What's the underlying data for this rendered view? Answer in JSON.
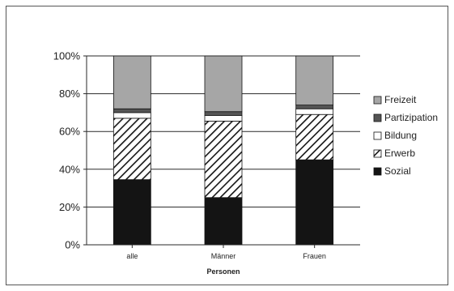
{
  "chart_data": {
    "type": "bar",
    "stacked": true,
    "percent": true,
    "xlabel": "Personen",
    "ylabel": "",
    "ylim": [
      0,
      100
    ],
    "yticks": [
      "0%",
      "20%",
      "40%",
      "60%",
      "80%",
      "100%"
    ],
    "categories": [
      "alle",
      "Männer",
      "Frauen"
    ],
    "series": [
      {
        "name": "Sozial",
        "values": [
          34.5,
          25.0,
          45.0
        ],
        "color": "#141414",
        "pattern": "solid"
      },
      {
        "name": "Erwerb",
        "values": [
          32.5,
          40.5,
          24.0
        ],
        "color": "#ffffff",
        "pattern": "diagonal-hatch"
      },
      {
        "name": "Bildung",
        "values": [
          3.0,
          3.0,
          3.0
        ],
        "color": "#ffffff",
        "pattern": "solid"
      },
      {
        "name": "Partizipation",
        "values": [
          2.0,
          2.0,
          2.0
        ],
        "color": "#555555",
        "pattern": "solid"
      },
      {
        "name": "Freizeit",
        "values": [
          28.0,
          29.5,
          26.0
        ],
        "color": "#a6a6a6",
        "pattern": "solid"
      }
    ],
    "legend": {
      "placement": "right",
      "order": [
        "Freizeit",
        "Partizipation",
        "Bildung",
        "Erwerb",
        "Sozial"
      ]
    },
    "grid": true
  }
}
